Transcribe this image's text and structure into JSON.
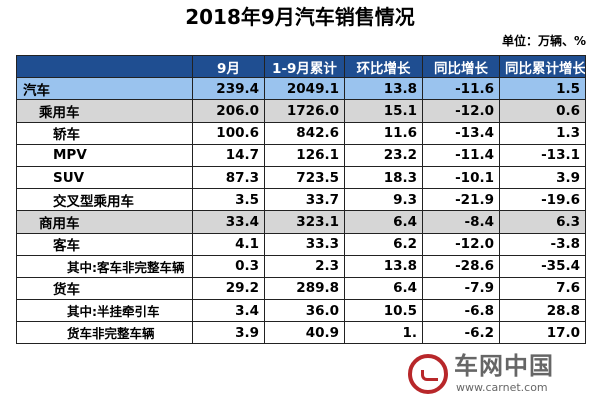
{
  "title": "2018年9月汽车销售情况",
  "unit": "单位：万辆、%",
  "table": {
    "headers": [
      "",
      "9月",
      "1-9月累计",
      "环比增长",
      "同比增长",
      "同比累计增长"
    ],
    "rows": [
      {
        "level": 0,
        "label": "汽车",
        "values": [
          "239.4",
          "2049.1",
          "13.8",
          "-11.6",
          "1.5"
        ]
      },
      {
        "level": 1,
        "label": "乘用车",
        "values": [
          "206.0",
          "1726.0",
          "15.1",
          "-12.0",
          "0.6"
        ]
      },
      {
        "level": 2,
        "label": "轿车",
        "values": [
          "100.6",
          "842.6",
          "11.6",
          "-13.4",
          "1.3"
        ]
      },
      {
        "level": 2,
        "label": "MPV",
        "values": [
          "14.7",
          "126.1",
          "23.2",
          "-11.4",
          "-13.1"
        ]
      },
      {
        "level": 2,
        "label": "SUV",
        "values": [
          "87.3",
          "723.5",
          "18.3",
          "-10.1",
          "3.9"
        ]
      },
      {
        "level": 2,
        "label": "交叉型乘用车",
        "values": [
          "3.5",
          "33.7",
          "9.3",
          "-21.9",
          "-19.6"
        ]
      },
      {
        "level": 1,
        "label": "商用车",
        "values": [
          "33.4",
          "323.1",
          "6.4",
          "-8.4",
          "6.3"
        ]
      },
      {
        "level": 2,
        "label": "客车",
        "values": [
          "4.1",
          "33.3",
          "6.2",
          "-12.0",
          "-3.8"
        ]
      },
      {
        "level": 3,
        "label": "其中:客车非完整车辆",
        "values": [
          "0.3",
          "2.3",
          "13.8",
          "-28.6",
          "-35.4"
        ]
      },
      {
        "level": 2,
        "label": "货车",
        "values": [
          "29.2",
          "289.8",
          "6.4",
          "-7.9",
          "7.6"
        ]
      },
      {
        "level": 3,
        "label": "其中:半挂牵引车",
        "values": [
          "3.4",
          "36.0",
          "10.5",
          "-6.8",
          "28.8"
        ]
      },
      {
        "level": 3,
        "label": "货车非完整车辆",
        "values": [
          "3.9",
          "40.9",
          "1.",
          "-6.2",
          "17.0"
        ]
      }
    ]
  },
  "watermark": {
    "logo": "circle-swoosh-logo",
    "text": "车网中国",
    "url": "www.carnet.com",
    "color": "#b8272a"
  }
}
